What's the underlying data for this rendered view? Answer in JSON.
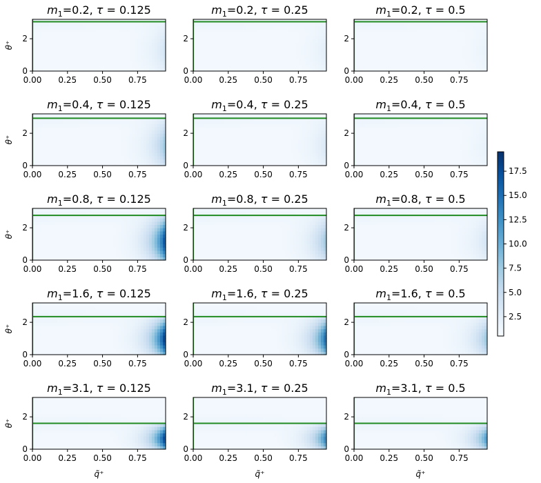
{
  "chart_data": {
    "type": "heatmap",
    "grid": {
      "rows": 5,
      "cols": 3
    },
    "m1_values": [
      "0.2",
      "0.4",
      "0.8",
      "1.6",
      "3.1"
    ],
    "tau_values": [
      "0.125",
      "0.25",
      "0.5"
    ],
    "panel_title_parts": {
      "m_sym": "m",
      "m_sub": "1",
      "tau_sym": "τ"
    },
    "xlabel": "q̃⁺",
    "ylabel": "θ⁺",
    "x_ticks": [
      "0.00",
      "0.25",
      "0.50",
      "0.75"
    ],
    "x_tick_values": [
      0,
      0.25,
      0.5,
      0.75
    ],
    "y_ticks": [
      "0",
      "2"
    ],
    "y_tick_values": [
      0,
      2
    ],
    "xlim": [
      0,
      0.95
    ],
    "ylim": [
      0,
      3.2
    ],
    "colormap": "Blues",
    "colorbar": {
      "min": 0.5,
      "max": 19.5,
      "ticks": [
        "2.5",
        "5.0",
        "7.5",
        "10.0",
        "12.5",
        "15.0",
        "17.5"
      ],
      "tick_values": [
        2.5,
        5.0,
        7.5,
        10.0,
        12.5,
        15.0,
        17.5
      ]
    },
    "line_color": "#1f8a1f",
    "line_values": [
      3.05,
      2.93,
      2.77,
      2.35,
      1.6
    ],
    "hot_spot_strength": [
      [
        4.0,
        2.5,
        1.8
      ],
      [
        8.0,
        3.5,
        2.0
      ],
      [
        18.0,
        8.0,
        4.0
      ],
      [
        19.5,
        16.0,
        8.0
      ],
      [
        19.0,
        14.0,
        12.0
      ]
    ]
  }
}
